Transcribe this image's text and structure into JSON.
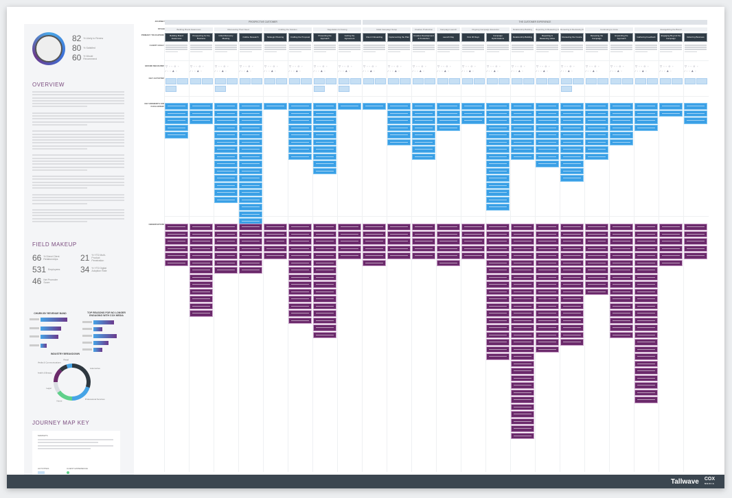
{
  "sidebar": {
    "stats": [
      {
        "value": "82",
        "label": "% Likely to Renew"
      },
      {
        "value": "80",
        "label": "% Satisfied"
      },
      {
        "value": "60",
        "label": "% Would Recommend"
      }
    ],
    "overview_title": "OVERVIEW",
    "field_makeup_title": "FIELD MAKEUP",
    "field_makeup": [
      {
        "value": "66",
        "label": "% Direct Client Relationships"
      },
      {
        "value": "21",
        "label": "% YTD Multi-Product Penetration"
      },
      {
        "value": "531",
        "label": "Employees"
      },
      {
        "value": "34",
        "label": "% YTD Digital Adoption Rate"
      },
      {
        "value": "46",
        "label": "Net Promoter Score"
      }
    ],
    "key_title": "JOURNEY MAP KEY",
    "key": {
      "markets": "MARKETS",
      "activities": "ACTIVITIES",
      "client_experience": "CLIENT EXPERIENCE"
    }
  },
  "chart_data": [
    {
      "type": "bar",
      "orientation": "horizontal",
      "title": "CHURN BY REVENUE BAND",
      "values": [
        78,
        60,
        52,
        17
      ]
    },
    {
      "type": "bar",
      "orientation": "horizontal",
      "title": "TOP REASONS FOR NO LONGER ENGAGING WITH COX MEDIA",
      "values": [
        60,
        25,
        68,
        43,
        25
      ]
    },
    {
      "type": "pie",
      "donut": true,
      "title": "INDUSTRY BREAKDOWN",
      "categories": [
        "Automotive",
        "Professional Services",
        "Home",
        "Legal",
        "Health & Beauty",
        "Media & Communications",
        "Retail"
      ],
      "values": [
        30,
        20,
        15,
        10,
        13,
        7,
        5
      ],
      "colors": [
        "#2e3840",
        "#46a4e6",
        "#5fd08a",
        "#d9dde2",
        "#6b2a6b",
        "#2e3840",
        "#46a4e6"
      ]
    }
  ],
  "rows": {
    "journey": "JOURNEY",
    "stage": "STAGE",
    "touchpoint": "PRIMARY TOUCHPOINT",
    "goals": "CLIENT GOALS",
    "measures": "BRAND MEASURES",
    "activities": "KEY ACTIVITIES",
    "moments": "KEY MOMENTS AND CHALLENGES",
    "observations": "OBSERVATIONS"
  },
  "journeys": [
    {
      "name": "PROSPECTIVE CUSTOMER",
      "stages": [
        {
          "name": "Building Brand Awareness",
          "steps": [
            "Building Brand Awareness",
            "Prospecting for the Business"
          ]
        },
        {
          "name": "Discovering Their Need",
          "steps": [
            "Initial Discovery Meeting",
            "Outline Research"
          ]
        },
        {
          "name": "Crafting the Solution",
          "steps": [
            "Strategic Planning",
            "Crafting the Proposal"
          ]
        },
        {
          "name": "Negotiation & Closing",
          "steps": [
            "Presenting the Approach",
            "Getting the Agreement"
          ]
        }
      ]
    },
    {
      "name": "THE CUSTOMER EXPERIENCE",
      "stages": [
        {
          "name": "Initial Campaign Setup",
          "steps": [
            "Client Onboarding",
            "Implementing the Plan"
          ]
        },
        {
          "name": "Creative Production",
          "steps": [
            "Creative Development & Production"
          ]
        },
        {
          "name": "Campaign Launch",
          "steps": [
            "Launch Day"
          ]
        },
        {
          "name": "Ongoing Campaign Execution",
          "steps": [
            "First 30 Days",
            "Campaign Optimizations"
          ]
        },
        {
          "name": "Relationship Building",
          "steps": [
            "Relationship Building"
          ]
        },
        {
          "name": "Reporting & Measuring Value",
          "steps": [
            "Reporting & Measuring Value"
          ]
        },
        {
          "name": "Renewing & Reviewing the Invoice",
          "steps": [
            "Reviewing the Invoice"
          ]
        },
        {
          "name": "Continuing to Grow",
          "steps": [
            "Renewing the Campaign",
            "Expanding the Approach"
          ]
        },
        {
          "name": "Evangelizing the Brand",
          "steps": [
            "Gathering Feedback",
            "Engaging Beyond the Campaign",
            "Referring Business"
          ]
        }
      ]
    }
  ],
  "footer": {
    "brand": "Tallwave",
    "partner_logo": "COX MEDIA"
  },
  "colors": {
    "touchpoint": "#2f3b45",
    "moments": "#3aa0e6",
    "observations": "#6b2a6b",
    "activities": "#c6dff4",
    "footer": "#3b4650"
  }
}
